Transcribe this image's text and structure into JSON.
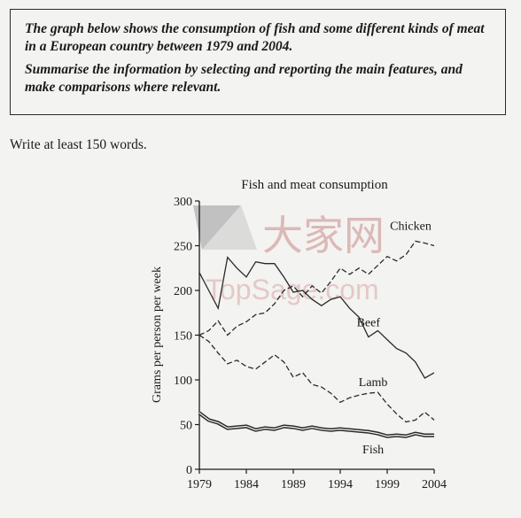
{
  "task": {
    "paragraph1": "The graph below shows the consumption of fish and some different kinds of meat in a European country between 1979 and 2004.",
    "paragraph2": "Summarise the information by selecting and reporting the main features, and make comparisons where relevant."
  },
  "instruction": "Write at least 150 words.",
  "watermark": {
    "cn": "大家网",
    "en": "TopSage.com"
  },
  "chart_data": {
    "type": "line",
    "title": "Fish and meat consumption",
    "xlabel": "",
    "ylabel": "Grams per person per week",
    "xlim": [
      1979,
      2004
    ],
    "ylim": [
      0,
      300
    ],
    "xticks": [
      1979,
      1984,
      1989,
      1994,
      1999,
      2004
    ],
    "yticks": [
      0,
      50,
      100,
      150,
      200,
      250,
      300
    ],
    "grid": false,
    "legend": "inline labels",
    "series": [
      {
        "name": "Chicken",
        "style": "dashed",
        "points": [
          [
            1979,
            150
          ],
          [
            1980,
            155
          ],
          [
            1981,
            166
          ],
          [
            1982,
            150
          ],
          [
            1983,
            160
          ],
          [
            1984,
            165
          ],
          [
            1985,
            173
          ],
          [
            1986,
            175
          ],
          [
            1987,
            185
          ],
          [
            1988,
            200
          ],
          [
            1989,
            205
          ],
          [
            1990,
            193
          ],
          [
            1991,
            205
          ],
          [
            1992,
            197
          ],
          [
            1993,
            210
          ],
          [
            1994,
            225
          ],
          [
            1995,
            218
          ],
          [
            1996,
            225
          ],
          [
            1997,
            218
          ],
          [
            1998,
            228
          ],
          [
            1999,
            238
          ],
          [
            2000,
            233
          ],
          [
            2001,
            240
          ],
          [
            2002,
            255
          ],
          [
            2003,
            253
          ],
          [
            2004,
            250
          ]
        ]
      },
      {
        "name": "Beef",
        "style": "solid",
        "points": [
          [
            1979,
            220
          ],
          [
            1980,
            200
          ],
          [
            1981,
            180
          ],
          [
            1982,
            237
          ],
          [
            1983,
            225
          ],
          [
            1984,
            215
          ],
          [
            1985,
            232
          ],
          [
            1986,
            230
          ],
          [
            1987,
            230
          ],
          [
            1988,
            215
          ],
          [
            1989,
            198
          ],
          [
            1990,
            200
          ],
          [
            1991,
            190
          ],
          [
            1992,
            183
          ],
          [
            1993,
            190
          ],
          [
            1994,
            193
          ],
          [
            1995,
            180
          ],
          [
            1996,
            170
          ],
          [
            1997,
            148
          ],
          [
            1998,
            155
          ],
          [
            1999,
            145
          ],
          [
            2000,
            135
          ],
          [
            2001,
            130
          ],
          [
            2002,
            120
          ],
          [
            2003,
            102
          ],
          [
            2004,
            108
          ]
        ]
      },
      {
        "name": "Lamb",
        "style": "dashed",
        "points": [
          [
            1979,
            150
          ],
          [
            1980,
            143
          ],
          [
            1981,
            130
          ],
          [
            1982,
            118
          ],
          [
            1983,
            122
          ],
          [
            1984,
            115
          ],
          [
            1985,
            112
          ],
          [
            1986,
            120
          ],
          [
            1987,
            128
          ],
          [
            1988,
            120
          ],
          [
            1989,
            103
          ],
          [
            1990,
            108
          ],
          [
            1991,
            95
          ],
          [
            1992,
            92
          ],
          [
            1993,
            85
          ],
          [
            1994,
            75
          ],
          [
            1995,
            80
          ],
          [
            1996,
            83
          ],
          [
            1997,
            85
          ],
          [
            1998,
            86
          ],
          [
            1999,
            73
          ],
          [
            2000,
            62
          ],
          [
            2001,
            53
          ],
          [
            2002,
            55
          ],
          [
            2003,
            64
          ],
          [
            2004,
            55
          ]
        ]
      },
      {
        "name": "Fish",
        "style": "solid-double",
        "points": [
          [
            1979,
            63
          ],
          [
            1980,
            55
          ],
          [
            1981,
            52
          ],
          [
            1982,
            46
          ],
          [
            1983,
            47
          ],
          [
            1984,
            48
          ],
          [
            1985,
            44
          ],
          [
            1986,
            46
          ],
          [
            1987,
            45
          ],
          [
            1988,
            48
          ],
          [
            1989,
            47
          ],
          [
            1990,
            45
          ],
          [
            1991,
            47
          ],
          [
            1992,
            45
          ],
          [
            1993,
            44
          ],
          [
            1994,
            45
          ],
          [
            1995,
            44
          ],
          [
            1996,
            43
          ],
          [
            1997,
            42
          ],
          [
            1998,
            40
          ],
          [
            1999,
            37
          ],
          [
            2000,
            38
          ],
          [
            2001,
            37
          ],
          [
            2002,
            40
          ],
          [
            2003,
            38
          ],
          [
            2004,
            38
          ]
        ]
      }
    ],
    "colors": {
      "line": "#2a2a2a",
      "axis": "#1a1a1a",
      "watermark": "#c98a86"
    }
  }
}
